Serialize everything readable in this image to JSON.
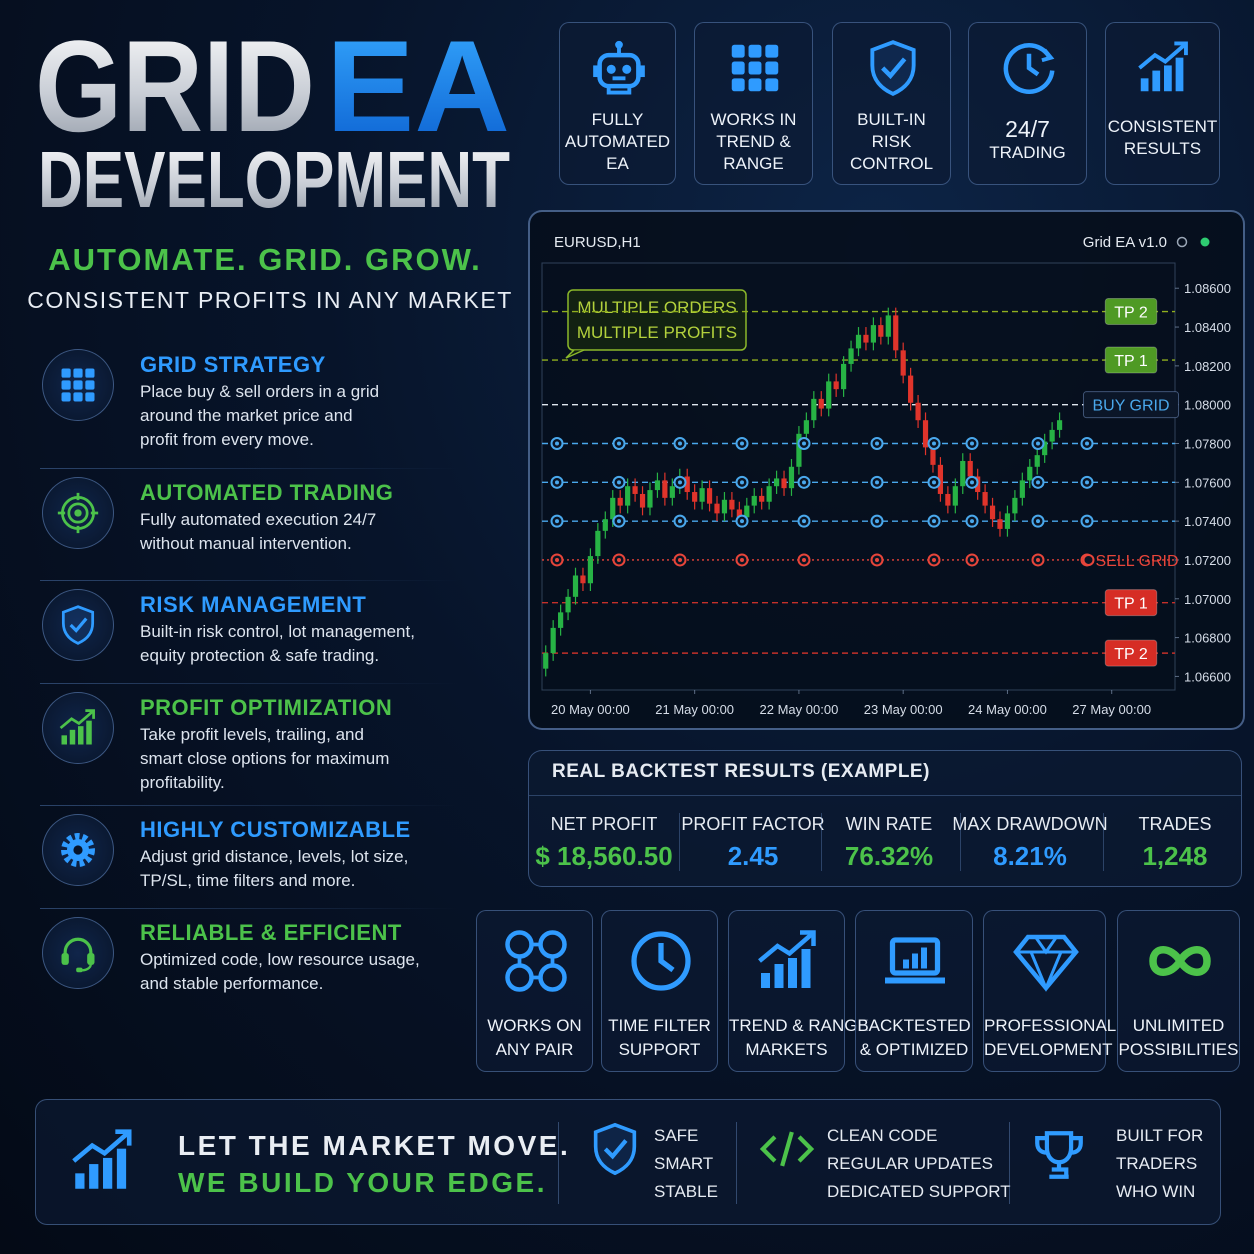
{
  "header": {
    "title_main": "GRID",
    "title_accent": "EA",
    "title_line2": "DEVELOPMENT",
    "tagline": "AUTOMATE. GRID. GROW.",
    "subtitle": "CONSISTENT PROFITS IN ANY MARKET"
  },
  "top_features": [
    {
      "lines": [
        "FULLY",
        "AUTOMATED",
        "EA"
      ]
    },
    {
      "lines": [
        "WORKS IN",
        "TREND &",
        "RANGE"
      ]
    },
    {
      "lines": [
        "BUILT-IN",
        "RISK",
        "CONTROL"
      ]
    },
    {
      "lines": [
        "24/7",
        "TRADING"
      ]
    },
    {
      "lines": [
        "CONSISTENT",
        "RESULTS"
      ]
    }
  ],
  "features": [
    {
      "title": "GRID STRATEGY",
      "description": [
        "Place buy & sell orders in a grid",
        "around the market price and",
        "profit from every move."
      ]
    },
    {
      "title": "AUTOMATED TRADING",
      "description": [
        "Fully automated execution 24/7",
        "without manual intervention."
      ]
    },
    {
      "title": "RISK MANAGEMENT",
      "description": [
        "Built-in risk control, lot management,",
        "equity protection & safe trading."
      ]
    },
    {
      "title": "PROFIT OPTIMIZATION",
      "description": [
        "Take profit levels, trailing, and",
        "smart close options for maximum",
        "profitability."
      ]
    },
    {
      "title": "HIGHLY CUSTOMIZABLE",
      "description": [
        "Adjust grid distance, levels, lot size,",
        "TP/SL, time filters and more."
      ]
    },
    {
      "title": "RELIABLE & EFFICIENT",
      "description": [
        "Optimized code, low resource usage,",
        "and stable performance."
      ]
    }
  ],
  "chart_data": {
    "type": "candlestick",
    "symbol": "EURUSD,H1",
    "label": "Grid EA v1.0",
    "annotation": [
      "MULTIPLE ORDERS",
      "MULTIPLE PROFITS"
    ],
    "ylim": [
      1.0653,
      1.0873
    ],
    "yticks": [
      {
        "value": 1.086,
        "label": "1.08600"
      },
      {
        "value": 1.084,
        "label": "1.08400"
      },
      {
        "value": 1.082,
        "label": "1.08200"
      },
      {
        "value": 1.08,
        "label": "1.08000"
      },
      {
        "value": 1.078,
        "label": "1.07800"
      },
      {
        "value": 1.076,
        "label": "1.07600"
      },
      {
        "value": 1.074,
        "label": "1.07400"
      },
      {
        "value": 1.072,
        "label": "1.07200"
      },
      {
        "value": 1.07,
        "label": "1.07000"
      },
      {
        "value": 1.068,
        "label": "1.06800"
      },
      {
        "value": 1.066,
        "label": "1.06600"
      }
    ],
    "xlim": [
      -0.5,
      84.5
    ],
    "xticks": [
      {
        "value": 6,
        "label": "20 May 00:00"
      },
      {
        "value": 20,
        "label": "21 May 00:00"
      },
      {
        "value": 34,
        "label": "22 May 00:00"
      },
      {
        "value": 48,
        "label": "23 May 00:00"
      },
      {
        "value": 62,
        "label": "24 May 00:00"
      },
      {
        "value": 76,
        "label": "27 May 00:00"
      }
    ],
    "up_color": "#27b345",
    "down_color": "#e0342b",
    "levels": [
      {
        "value": 1.0848,
        "label": "TP 2",
        "color": "#4f9a24",
        "line_color": "#8fae1e",
        "style": "dashed",
        "label_style": "filled",
        "orders": false
      },
      {
        "value": 1.0823,
        "label": "TP 1",
        "color": "#4f9a24",
        "line_color": "#8fae1e",
        "style": "dashed",
        "label_style": "filled",
        "orders": false
      },
      {
        "value": 1.08,
        "label": "BUY GRID",
        "color": "#4aa8ec",
        "line_color": "#dfe6ee",
        "style": "dashed",
        "label_style": "outlined",
        "orders": false
      },
      {
        "value": 1.078,
        "color": "#4aa8ec",
        "line_color": "#4aa8ec",
        "style": "dashed",
        "orders": true
      },
      {
        "value": 1.076,
        "color": "#4aa8ec",
        "line_color": "#4aa8ec",
        "style": "dashed",
        "orders": true
      },
      {
        "value": 1.074,
        "color": "#4aa8ec",
        "line_color": "#4aa8ec",
        "style": "dashed",
        "orders": true
      },
      {
        "value": 1.072,
        "label": "SELL GRID",
        "color": "#e8453a",
        "line_color": "#e8453a",
        "style": "dotted",
        "label_style": "plain",
        "orders": true
      },
      {
        "value": 1.0698,
        "label": "TP 1",
        "color": "#d62d25",
        "line_color": "#c4302a",
        "style": "dashed",
        "label_style": "filled",
        "orders": false
      },
      {
        "value": 1.0672,
        "label": "TP 2",
        "color": "#d62d25",
        "line_color": "#c4302a",
        "style": "dashed",
        "label_style": "filled",
        "orders": false
      }
    ],
    "candles": [
      [
        1.0664,
        1.0676,
        1.066,
        1.0672
      ],
      [
        1.0672,
        1.0689,
        1.0668,
        1.0685
      ],
      [
        1.0685,
        1.0697,
        1.0681,
        1.0693
      ],
      [
        1.0693,
        1.0705,
        1.0689,
        1.0701
      ],
      [
        1.0701,
        1.0716,
        1.0697,
        1.0712
      ],
      [
        1.0712,
        1.0716,
        1.0704,
        1.0708
      ],
      [
        1.0708,
        1.0726,
        1.0704,
        1.0722
      ],
      [
        1.0722,
        1.0739,
        1.0718,
        1.0735
      ],
      [
        1.0735,
        1.0745,
        1.0731,
        1.0741
      ],
      [
        1.0741,
        1.0756,
        1.0737,
        1.0752
      ],
      [
        1.0752,
        1.0756,
        1.0744,
        1.0748
      ],
      [
        1.0748,
        1.0762,
        1.0744,
        1.0758
      ],
      [
        1.0758,
        1.0762,
        1.075,
        1.0754
      ],
      [
        1.0754,
        1.0758,
        1.0743,
        1.0747
      ],
      [
        1.0747,
        1.076,
        1.0743,
        1.0756
      ],
      [
        1.0756,
        1.0765,
        1.0752,
        1.0761
      ],
      [
        1.0761,
        1.0765,
        1.0748,
        1.0752
      ],
      [
        1.0752,
        1.0762,
        1.0748,
        1.0758
      ],
      [
        1.0758,
        1.0767,
        1.0754,
        1.0763
      ],
      [
        1.0763,
        1.0767,
        1.0751,
        1.0755
      ],
      [
        1.0755,
        1.0759,
        1.0746,
        1.075
      ],
      [
        1.075,
        1.0761,
        1.0746,
        1.0757
      ],
      [
        1.0757,
        1.0761,
        1.0745,
        1.0749
      ],
      [
        1.0749,
        1.0753,
        1.074,
        1.0744
      ],
      [
        1.0744,
        1.0755,
        1.074,
        1.0751
      ],
      [
        1.0751,
        1.0755,
        1.0742,
        1.0746
      ],
      [
        1.0746,
        1.075,
        1.0738,
        1.0742
      ],
      [
        1.0742,
        1.0752,
        1.0738,
        1.0748
      ],
      [
        1.0748,
        1.0757,
        1.0744,
        1.0753
      ],
      [
        1.0753,
        1.0757,
        1.0746,
        1.075
      ],
      [
        1.075,
        1.0762,
        1.0746,
        1.0758
      ],
      [
        1.0758,
        1.0766,
        1.0754,
        1.0762
      ],
      [
        1.0762,
        1.0766,
        1.0753,
        1.0757
      ],
      [
        1.0757,
        1.0772,
        1.0753,
        1.0768
      ],
      [
        1.0768,
        1.0789,
        1.0764,
        1.0785
      ],
      [
        1.0785,
        1.0796,
        1.0781,
        1.0792
      ],
      [
        1.0792,
        1.0807,
        1.0788,
        1.0803
      ],
      [
        1.0803,
        1.0807,
        1.0794,
        1.0798
      ],
      [
        1.0798,
        1.0816,
        1.0794,
        1.0812
      ],
      [
        1.0812,
        1.0816,
        1.0804,
        1.0808
      ],
      [
        1.0808,
        1.0825,
        1.0804,
        1.0821
      ],
      [
        1.0821,
        1.0833,
        1.0817,
        1.0829
      ],
      [
        1.0829,
        1.084,
        1.0825,
        1.0836
      ],
      [
        1.0836,
        1.084,
        1.0828,
        1.0832
      ],
      [
        1.0832,
        1.0845,
        1.0828,
        1.0841
      ],
      [
        1.0841,
        1.0845,
        1.0831,
        1.0835
      ],
      [
        1.0835,
        1.085,
        1.0831,
        1.0846
      ],
      [
        1.0846,
        1.085,
        1.0824,
        1.0828
      ],
      [
        1.0828,
        1.0832,
        1.0811,
        1.0815
      ],
      [
        1.0815,
        1.0819,
        1.0797,
        1.0801
      ],
      [
        1.0801,
        1.0805,
        1.0788,
        1.0792
      ],
      [
        1.0792,
        1.0796,
        1.0774,
        1.0778
      ],
      [
        1.0778,
        1.0782,
        1.0765,
        1.0769
      ],
      [
        1.0769,
        1.0773,
        1.075,
        1.0754
      ],
      [
        1.0754,
        1.0758,
        1.0744,
        1.0748
      ],
      [
        1.0748,
        1.0762,
        1.0744,
        1.0758
      ],
      [
        1.0758,
        1.0775,
        1.0754,
        1.0771
      ],
      [
        1.0771,
        1.0775,
        1.0759,
        1.0763
      ],
      [
        1.0763,
        1.0767,
        1.0751,
        1.0755
      ],
      [
        1.0755,
        1.0759,
        1.0744,
        1.0748
      ],
      [
        1.0748,
        1.0752,
        1.0737,
        1.0741
      ],
      [
        1.0741,
        1.0745,
        1.0732,
        1.0736
      ],
      [
        1.0736,
        1.0748,
        1.0732,
        1.0744
      ],
      [
        1.0744,
        1.0756,
        1.074,
        1.0752
      ],
      [
        1.0752,
        1.0765,
        1.0748,
        1.0761
      ],
      [
        1.0761,
        1.0772,
        1.0757,
        1.0768
      ],
      [
        1.0768,
        1.0778,
        1.0764,
        1.0774
      ],
      [
        1.0774,
        1.0785,
        1.077,
        1.0781
      ],
      [
        1.0781,
        1.0791,
        1.0777,
        1.0787
      ],
      [
        1.0787,
        1.0796,
        1.0783,
        1.0792
      ]
    ]
  },
  "backtest": {
    "title": "REAL BACKTEST RESULTS (EXAMPLE)",
    "stats": [
      {
        "label": "NET PROFIT",
        "value": "$ 18,560.50"
      },
      {
        "label": "PROFIT FACTOR",
        "value": "2.45"
      },
      {
        "label": "WIN RATE",
        "value": "76.32%"
      },
      {
        "label": "MAX DRAWDOWN",
        "value": "8.21%"
      },
      {
        "label": "TRADES",
        "value": "1,248"
      }
    ]
  },
  "bottom_features": [
    {
      "lines": [
        "WORKS ON",
        "ANY PAIR"
      ]
    },
    {
      "lines": [
        "TIME FILTER",
        "SUPPORT"
      ]
    },
    {
      "lines": [
        "TREND & RANGE",
        "MARKETS"
      ]
    },
    {
      "lines": [
        "BACKTESTED",
        "& OPTIMIZED"
      ]
    },
    {
      "lines": [
        "PROFESSIONAL",
        "DEVELOPMENT"
      ]
    },
    {
      "lines": [
        "UNLIMITED",
        "POSSIBILITIES"
      ]
    }
  ],
  "footer": {
    "slogan": [
      "LET THE MARKET MOVE.",
      "WE BUILD YOUR EDGE."
    ],
    "groups": [
      [
        "SAFE",
        "SMART",
        "STABLE"
      ],
      [
        "CLEAN CODE",
        "REGULAR UPDATES",
        "DEDICATED SUPPORT"
      ],
      [
        "BUILT FOR",
        "TRADERS",
        "WHO WIN"
      ]
    ]
  }
}
